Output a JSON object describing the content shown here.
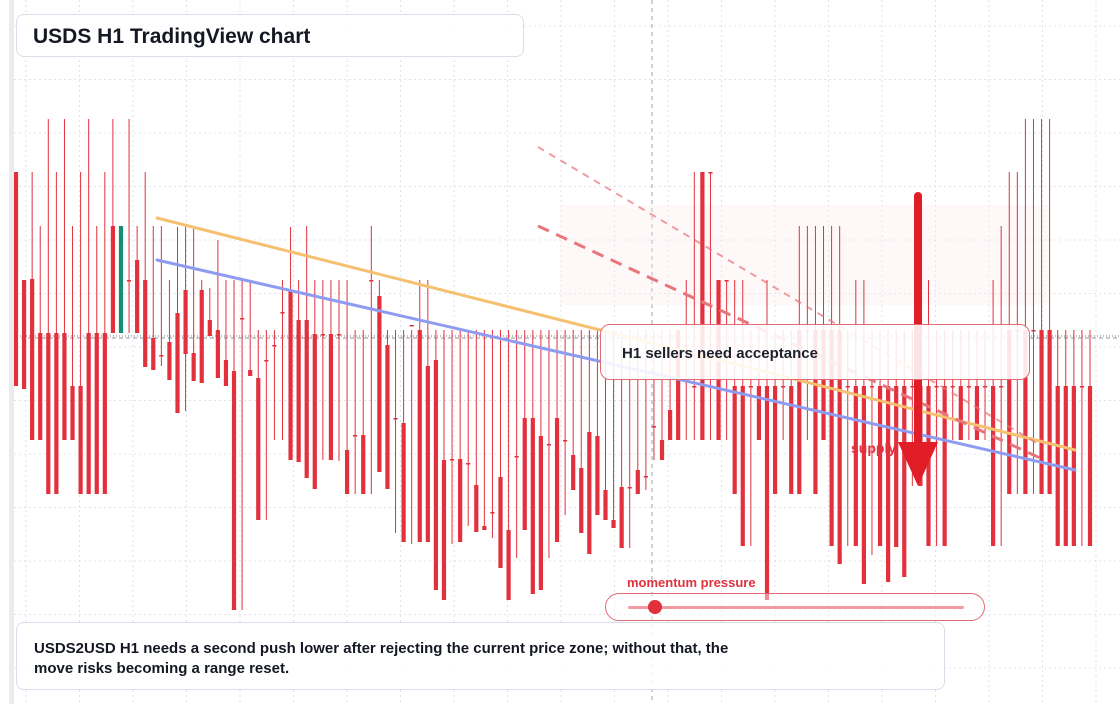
{
  "title": "USDS H1 TradingView chart",
  "callout": "H1 sellers need acceptance",
  "supply_label": "supply",
  "momentum": {
    "label": "momentum pressure",
    "level": 0.08
  },
  "summary": "USDS2USD H1 needs a second push lower after rejecting the current price zone; without that, the move risks becoming a range reset.",
  "colors": {
    "bull": "#12906f",
    "bear": "#e3303d",
    "orange_trend": "#f5c06f",
    "blue_trend": "#8d9cf0",
    "dashed_red": "#e8757b",
    "arrow": "#e11e28",
    "grid": "#d5dce6"
  },
  "chart_data": {
    "type": "candlestick",
    "y_domain": [
      0,
      704
    ],
    "current_price": 336,
    "candles": [
      [
        172,
        172,
        386,
        386
      ],
      [
        280,
        280,
        387,
        389
      ],
      [
        172,
        279,
        440,
        440
      ],
      [
        226,
        333,
        440,
        440
      ],
      [
        119,
        333,
        494,
        494
      ],
      [
        172,
        333,
        494,
        494
      ],
      [
        119,
        333,
        440,
        440
      ],
      [
        226,
        386,
        440,
        440
      ],
      [
        172,
        386,
        494,
        494
      ],
      [
        119,
        333,
        494,
        494
      ],
      [
        226,
        333,
        494,
        494
      ],
      [
        172,
        333,
        494,
        494
      ],
      [
        119,
        226,
        333,
        333
      ],
      [
        226,
        333,
        333,
        226
      ],
      [
        119,
        280,
        333,
        280
      ],
      [
        226,
        260,
        333,
        333
      ],
      [
        172,
        280,
        367,
        367
      ],
      [
        226,
        338,
        370,
        370
      ],
      [
        226,
        355,
        366,
        355
      ],
      [
        280,
        342,
        380,
        380
      ],
      [
        227,
        313,
        413,
        413
      ],
      [
        227,
        290,
        411,
        354
      ],
      [
        226,
        353,
        381,
        381
      ],
      [
        280,
        290,
        383,
        383
      ],
      [
        288,
        320,
        336,
        336
      ],
      [
        240,
        330,
        378,
        378
      ],
      [
        280,
        360,
        386,
        386
      ],
      [
        280,
        371,
        610,
        610
      ],
      [
        280,
        318,
        610,
        318
      ],
      [
        280,
        370,
        376,
        376
      ],
      [
        330,
        378,
        520,
        520
      ],
      [
        330,
        360,
        520,
        360
      ],
      [
        330,
        345,
        440,
        345
      ],
      [
        280,
        312,
        440,
        312
      ],
      [
        227,
        290,
        460,
        460
      ],
      [
        280,
        320,
        462,
        462
      ],
      [
        226,
        320,
        478,
        478
      ],
      [
        280,
        334,
        489,
        489
      ],
      [
        280,
        334,
        460,
        334
      ],
      [
        280,
        334,
        460,
        460
      ],
      [
        280,
        334,
        461,
        334
      ],
      [
        280,
        450,
        494,
        494
      ],
      [
        330,
        435,
        494,
        435
      ],
      [
        330,
        435,
        494,
        494
      ],
      [
        226,
        280,
        494,
        280
      ],
      [
        280,
        296,
        472,
        472
      ],
      [
        330,
        345,
        489,
        489
      ],
      [
        330,
        418,
        533,
        418
      ],
      [
        330,
        423,
        542,
        542
      ],
      [
        330,
        325,
        544,
        325
      ],
      [
        280,
        330,
        542,
        542
      ],
      [
        280,
        366,
        542,
        542
      ],
      [
        330,
        360,
        590,
        590
      ],
      [
        330,
        460,
        600,
        600
      ],
      [
        330,
        459,
        544,
        459
      ],
      [
        330,
        459,
        542,
        542
      ],
      [
        330,
        463,
        526,
        463
      ],
      [
        330,
        485,
        532,
        532
      ],
      [
        330,
        526,
        530,
        530
      ],
      [
        330,
        512,
        538,
        512
      ],
      [
        330,
        477,
        568,
        568
      ],
      [
        330,
        530,
        600,
        600
      ],
      [
        330,
        456,
        558,
        456
      ],
      [
        330,
        418,
        530,
        530
      ],
      [
        330,
        418,
        594,
        594
      ],
      [
        330,
        436,
        590,
        590
      ],
      [
        330,
        444,
        558,
        444
      ],
      [
        330,
        418,
        542,
        542
      ],
      [
        330,
        440,
        515,
        440
      ],
      [
        330,
        455,
        490,
        490
      ],
      [
        330,
        468,
        533,
        533
      ],
      [
        330,
        432,
        554,
        554
      ],
      [
        330,
        436,
        515,
        515
      ],
      [
        330,
        490,
        520,
        520
      ],
      [
        330,
        520,
        528,
        528
      ],
      [
        330,
        487,
        548,
        548
      ],
      [
        330,
        487,
        548,
        487
      ],
      [
        330,
        470,
        494,
        494
      ],
      [
        330,
        476,
        490,
        476
      ],
      [
        330,
        426,
        460,
        426
      ],
      [
        330,
        440,
        460,
        460
      ],
      [
        330,
        410,
        440,
        440
      ],
      [
        330,
        330,
        440,
        440
      ],
      [
        280,
        345,
        440,
        345
      ],
      [
        172,
        386,
        440,
        386
      ],
      [
        172,
        172,
        440,
        440
      ],
      [
        172,
        172,
        440,
        172
      ],
      [
        280,
        280,
        440,
        440
      ],
      [
        280,
        280,
        440,
        280
      ],
      [
        280,
        386,
        494,
        494
      ],
      [
        280,
        386,
        546,
        546
      ],
      [
        330,
        386,
        546,
        386
      ],
      [
        330,
        386,
        440,
        440
      ],
      [
        280,
        386,
        600,
        600
      ],
      [
        330,
        386,
        494,
        494
      ],
      [
        330,
        386,
        440,
        386
      ],
      [
        330,
        386,
        494,
        494
      ],
      [
        226,
        330,
        494,
        494
      ],
      [
        226,
        330,
        440,
        330
      ],
      [
        226,
        330,
        494,
        494
      ],
      [
        226,
        330,
        440,
        440
      ],
      [
        226,
        330,
        546,
        546
      ],
      [
        226,
        330,
        564,
        564
      ],
      [
        330,
        386,
        546,
        386
      ],
      [
        280,
        386,
        546,
        546
      ],
      [
        280,
        386,
        584,
        584
      ],
      [
        330,
        386,
        555,
        386
      ],
      [
        330,
        386,
        546,
        546
      ],
      [
        330,
        386,
        582,
        582
      ],
      [
        330,
        386,
        547,
        547
      ],
      [
        330,
        386,
        577,
        577
      ],
      [
        330,
        386,
        486,
        386
      ],
      [
        330,
        386,
        486,
        486
      ],
      [
        280,
        386,
        546,
        546
      ],
      [
        330,
        386,
        546,
        386
      ],
      [
        330,
        386,
        546,
        546
      ],
      [
        330,
        386,
        440,
        386
      ],
      [
        330,
        386,
        440,
        440
      ],
      [
        330,
        386,
        440,
        386
      ],
      [
        330,
        386,
        440,
        440
      ],
      [
        330,
        386,
        440,
        386
      ],
      [
        280,
        386,
        546,
        546
      ],
      [
        226,
        386,
        546,
        386
      ],
      [
        172,
        330,
        494,
        494
      ],
      [
        172,
        330,
        494,
        330
      ],
      [
        119,
        330,
        494,
        494
      ],
      [
        119,
        330,
        494,
        330
      ],
      [
        119,
        330,
        494,
        494
      ],
      [
        119,
        330,
        494,
        494
      ],
      [
        330,
        386,
        546,
        546
      ],
      [
        330,
        386,
        546,
        546
      ],
      [
        330,
        386,
        546,
        546
      ],
      [
        330,
        386,
        546,
        386
      ],
      [
        330,
        386,
        546,
        546
      ]
    ]
  }
}
